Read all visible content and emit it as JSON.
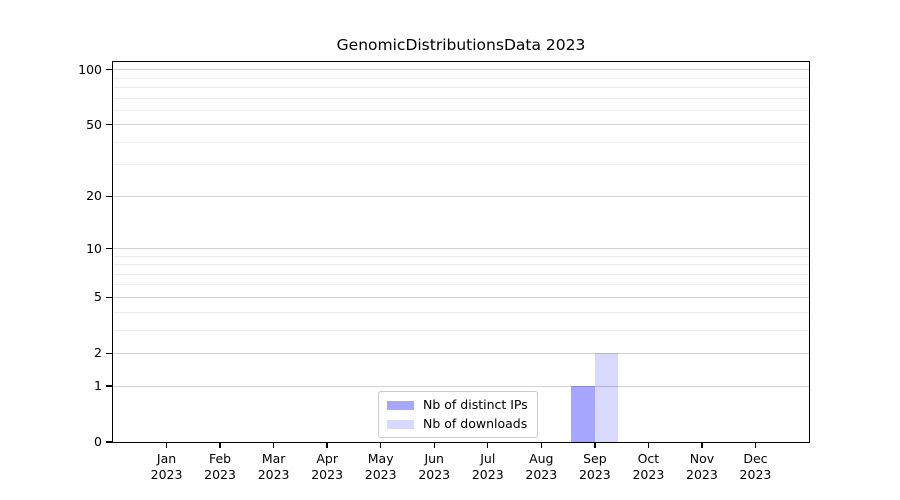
{
  "chart_data": {
    "type": "bar",
    "title": "GenomicDistributionsData 2023",
    "categories": [
      "Jan 2023",
      "Feb 2023",
      "Mar 2023",
      "Apr 2023",
      "May 2023",
      "Jun 2023",
      "Jul 2023",
      "Aug 2023",
      "Sep 2023",
      "Oct 2023",
      "Nov 2023",
      "Dec 2023"
    ],
    "series": [
      {
        "name": "Nb of distinct IPs",
        "color": "rgba(0,0,255,0.35)",
        "values": [
          0,
          0,
          0,
          0,
          0,
          0,
          0,
          0,
          1,
          0,
          0,
          0
        ]
      },
      {
        "name": "Nb of downloads",
        "color": "rgba(0,0,255,0.15)",
        "values": [
          0,
          0,
          0,
          0,
          0,
          0,
          0,
          0,
          2,
          0,
          0,
          0
        ]
      }
    ],
    "yscale": "log1p",
    "ylim": [
      0,
      110
    ],
    "yticks": [
      0,
      1,
      2,
      5,
      10,
      20,
      50,
      100
    ],
    "yticks_minor": [
      3,
      4,
      6,
      7,
      8,
      9,
      30,
      40,
      60,
      70,
      80,
      90
    ],
    "grid": "horizontal",
    "legend_position": "lower-center",
    "colors": {
      "grid_major": "#d2d2d2",
      "grid_minor": "#ededed",
      "axis": "#000000",
      "legend_border": "#cccccc",
      "background": "#ffffff"
    }
  }
}
